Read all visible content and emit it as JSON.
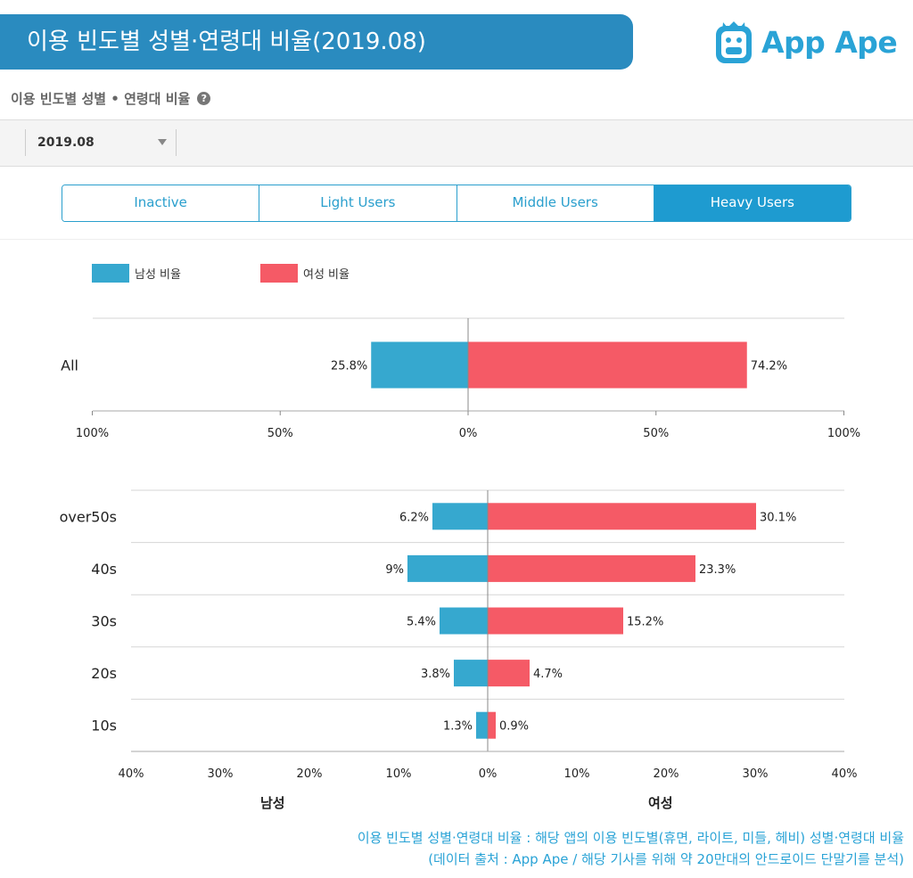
{
  "header": {
    "title": "이용 빈도별 성별·연령대 비율(2019.08)",
    "logo_text": "App Ape"
  },
  "section": {
    "title": "이용 빈도별 성별 • 연령대 비율",
    "help": "?"
  },
  "filter": {
    "date": "2019.08"
  },
  "tabs": [
    {
      "label": "Inactive",
      "active": false
    },
    {
      "label": "Light Users",
      "active": false
    },
    {
      "label": "Middle Users",
      "active": false
    },
    {
      "label": "Heavy Users",
      "active": true
    }
  ],
  "colors": {
    "male": "#36a8cf",
    "female": "#f55a66",
    "accent": "#2a8bbf"
  },
  "legend": {
    "male": "남성 비율",
    "female": "여성 비율"
  },
  "chart_data": [
    {
      "type": "bar",
      "orientation": "diverging-horizontal",
      "categories": [
        "All"
      ],
      "series": [
        {
          "name": "남성 비율",
          "values": [
            25.8
          ]
        },
        {
          "name": "여성 비율",
          "values": [
            74.2
          ]
        }
      ],
      "data_labels": {
        "male": [
          "25.8%"
        ],
        "female": [
          "74.2%"
        ]
      },
      "xlim": [
        -100,
        100
      ],
      "xticks": [
        -100,
        -50,
        0,
        50,
        100
      ],
      "xtick_labels": [
        "100%",
        "50%",
        "0%",
        "50%",
        "100%"
      ]
    },
    {
      "type": "bar",
      "orientation": "diverging-horizontal",
      "categories": [
        "over50s",
        "40s",
        "30s",
        "20s",
        "10s"
      ],
      "series": [
        {
          "name": "남성 비율",
          "values": [
            6.2,
            9,
            5.4,
            3.8,
            1.3
          ]
        },
        {
          "name": "여성 비율",
          "values": [
            30.1,
            23.3,
            15.2,
            4.7,
            0.9
          ]
        }
      ],
      "data_labels": {
        "male": [
          "6.2%",
          "9%",
          "5.4%",
          "3.8%",
          "1.3%"
        ],
        "female": [
          "30.1%",
          "23.3%",
          "15.2%",
          "4.7%",
          "0.9%"
        ]
      },
      "xlim": [
        -40,
        40
      ],
      "xticks": [
        -40,
        -30,
        -20,
        -10,
        0,
        10,
        20,
        30,
        40
      ],
      "xtick_labels": [
        "40%",
        "30%",
        "20%",
        "10%",
        "0%",
        "10%",
        "20%",
        "30%",
        "40%"
      ],
      "xlabel_left": "남성",
      "xlabel_right": "여성"
    }
  ],
  "footnote": {
    "line1": "이용 빈도별 성별·연령대 비율 : 해당 앱의 이용 빈도별(휴면, 라이트, 미들, 헤비) 성별·연령대 비율",
    "line2": "(데이터 출처 : App Ape / 해당 기사를 위해 약 20만대의 안드로이드 단말기를 분석)"
  }
}
